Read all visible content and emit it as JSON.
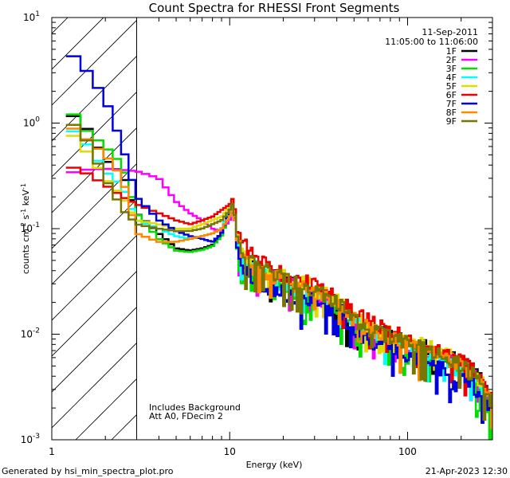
{
  "chart_data": {
    "type": "line",
    "title": "Count Spectra for RHESSI Front Segments",
    "xlabel": "Energy (keV)",
    "ylabel_parts": [
      "counts cm",
      "-2",
      " s",
      "-1",
      " keV",
      "-1"
    ],
    "xscale": "log",
    "yscale": "log",
    "xlim": [
      1,
      300
    ],
    "ylim": [
      0.001,
      10
    ],
    "x_ticks": [
      {
        "value": 1,
        "label": "1"
      },
      {
        "value": 10,
        "label": "10"
      },
      {
        "value": 100,
        "label": "100"
      }
    ],
    "y_ticks": [
      {
        "value": 0.001,
        "base": "10",
        "exp": "-3"
      },
      {
        "value": 0.01,
        "base": "10",
        "exp": "-2"
      },
      {
        "value": 0.1,
        "base": "10",
        "exp": "-1"
      },
      {
        "value": 1,
        "base": "10",
        "exp": "0"
      },
      {
        "value": 10,
        "base": "10",
        "exp": "1"
      }
    ],
    "legend_placement": "top-right",
    "date": "11-Sep-2011",
    "time_range": "11:05:00 to 11:06:00",
    "hatched_region_max_energy": 3,
    "annotations": [
      "Includes Background",
      "Att A0, FDecim 2"
    ],
    "series": [
      {
        "name": "1F",
        "color": "#000000",
        "energy": [
          1.2,
          1.5,
          2,
          2.5,
          3,
          4,
          5,
          6,
          7,
          8,
          9,
          10,
          10.5,
          11,
          12,
          15,
          20,
          30,
          40,
          50,
          70,
          100,
          150,
          200,
          250,
          300
        ],
        "counts": [
          1.3,
          1.0,
          0.45,
          0.33,
          0.14,
          0.09,
          0.065,
          0.062,
          0.065,
          0.07,
          0.09,
          0.15,
          0.17,
          0.08,
          0.05,
          0.04,
          0.032,
          0.025,
          0.019,
          0.013,
          0.0105,
          0.0085,
          0.0068,
          0.0055,
          0.0042,
          0.0022
        ]
      },
      {
        "name": "2F",
        "color": "#ff00ff",
        "energy": [
          1.2,
          1.5,
          2,
          2.5,
          3,
          4,
          5,
          6,
          7,
          8,
          9,
          10,
          10.5,
          11,
          12,
          15,
          20,
          30,
          40,
          50,
          70,
          100,
          150,
          200,
          250,
          300
        ],
        "counts": [
          0.33,
          0.36,
          0.37,
          0.36,
          0.35,
          0.3,
          0.18,
          0.14,
          0.12,
          0.1,
          0.095,
          0.12,
          0.15,
          0.085,
          0.052,
          0.04,
          0.031,
          0.024,
          0.018,
          0.0125,
          0.0095,
          0.0078,
          0.0062,
          0.005,
          0.0038,
          0.002
        ]
      },
      {
        "name": "3F",
        "color": "#00dd00",
        "energy": [
          1.2,
          1.5,
          2,
          2.5,
          3,
          4,
          5,
          6,
          7,
          8,
          9,
          10,
          10.5,
          11,
          12,
          15,
          20,
          30,
          40,
          50,
          70,
          100,
          150,
          200,
          250,
          300
        ],
        "counts": [
          1.5,
          0.9,
          0.6,
          0.4,
          0.14,
          0.08,
          0.062,
          0.06,
          0.063,
          0.068,
          0.085,
          0.14,
          0.18,
          0.075,
          0.045,
          0.035,
          0.028,
          0.023,
          0.017,
          0.012,
          0.009,
          0.0075,
          0.006,
          0.0045,
          0.003,
          0.0018
        ]
      },
      {
        "name": "4F",
        "color": "#00ffff",
        "energy": [
          1.2,
          1.5,
          2,
          2.5,
          3,
          4,
          5,
          6,
          7,
          8,
          9,
          10,
          10.5,
          11,
          12,
          15,
          20,
          30,
          40,
          50,
          70,
          100,
          150,
          200,
          250,
          300
        ],
        "counts": [
          0.95,
          0.7,
          0.35,
          0.25,
          0.12,
          0.1,
          0.085,
          0.08,
          0.085,
          0.09,
          0.1,
          0.15,
          0.17,
          0.08,
          0.05,
          0.04,
          0.03,
          0.024,
          0.018,
          0.0125,
          0.0095,
          0.0075,
          0.0058,
          0.0045,
          0.0033,
          0.002
        ]
      },
      {
        "name": "5F",
        "color": "#dddd00",
        "energy": [
          1.2,
          1.5,
          2,
          2.5,
          3,
          4,
          5,
          6,
          7,
          8,
          9,
          10,
          10.5,
          11,
          12,
          15,
          20,
          30,
          40,
          50,
          70,
          100,
          150,
          200,
          250,
          300
        ],
        "counts": [
          0.9,
          0.6,
          0.3,
          0.2,
          0.12,
          0.11,
          0.1,
          0.1,
          0.11,
          0.12,
          0.13,
          0.16,
          0.19,
          0.09,
          0.06,
          0.045,
          0.036,
          0.028,
          0.021,
          0.015,
          0.011,
          0.0088,
          0.007,
          0.0055,
          0.004,
          0.0024
        ]
      },
      {
        "name": "6F",
        "color": "#ee0000",
        "energy": [
          1.2,
          1.5,
          2,
          2.5,
          3,
          4,
          5,
          6,
          7,
          8,
          9,
          10,
          10.5,
          11,
          12,
          15,
          20,
          30,
          40,
          50,
          70,
          100,
          150,
          200,
          250,
          300
        ],
        "counts": [
          0.4,
          0.35,
          0.26,
          0.2,
          0.17,
          0.14,
          0.12,
          0.11,
          0.12,
          0.13,
          0.15,
          0.17,
          0.2,
          0.1,
          0.07,
          0.05,
          0.038,
          0.029,
          0.022,
          0.016,
          0.012,
          0.0092,
          0.0072,
          0.0056,
          0.0042,
          0.0025
        ]
      },
      {
        "name": "7F",
        "color": "#0000dd",
        "energy": [
          1.2,
          1.5,
          2,
          2.5,
          3,
          4,
          5,
          6,
          7,
          8,
          9,
          10,
          10.5,
          11,
          12,
          15,
          20,
          30,
          40,
          50,
          70,
          100,
          150,
          200,
          250,
          300
        ],
        "counts": [
          5.0,
          3.5,
          1.7,
          0.6,
          0.2,
          0.12,
          0.095,
          0.085,
          0.08,
          0.075,
          0.09,
          0.15,
          0.18,
          0.07,
          0.04,
          0.03,
          0.025,
          0.021,
          0.016,
          0.011,
          0.008,
          0.0065,
          0.005,
          0.004,
          0.003,
          0.002
        ]
      },
      {
        "name": "8F",
        "color": "#ff8800",
        "energy": [
          1.2,
          1.5,
          2,
          2.5,
          3,
          4,
          5,
          6,
          7,
          8,
          9,
          10,
          10.5,
          11,
          12,
          15,
          20,
          30,
          40,
          50,
          70,
          100,
          150,
          200,
          250,
          300
        ],
        "counts": [
          1.0,
          0.75,
          0.5,
          0.3,
          0.09,
          0.075,
          0.075,
          0.08,
          0.085,
          0.09,
          0.1,
          0.13,
          0.16,
          0.08,
          0.05,
          0.04,
          0.032,
          0.025,
          0.019,
          0.0135,
          0.01,
          0.008,
          0.0064,
          0.005,
          0.0036,
          0.0022
        ]
      },
      {
        "name": "9F",
        "color": "#777700",
        "energy": [
          1.2,
          1.5,
          2,
          2.5,
          3,
          4,
          5,
          6,
          7,
          8,
          9,
          10,
          10.5,
          11,
          12,
          15,
          20,
          30,
          40,
          50,
          70,
          100,
          150,
          200,
          250,
          300
        ],
        "counts": [
          1.1,
          0.8,
          0.3,
          0.15,
          0.11,
          0.1,
          0.095,
          0.095,
          0.1,
          0.11,
          0.12,
          0.15,
          0.18,
          0.085,
          0.055,
          0.042,
          0.034,
          0.026,
          0.02,
          0.014,
          0.0105,
          0.0082,
          0.0066,
          0.0052,
          0.0038,
          0.0023
        ]
      }
    ]
  },
  "footer": {
    "left": "Generated by hsi_min_spectra_plot.pro",
    "right": "21-Apr-2023 12:30"
  }
}
